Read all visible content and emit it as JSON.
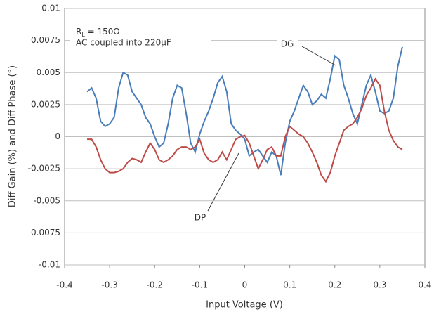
{
  "chart_data": {
    "type": "line",
    "xlabel": "Input Voltage (V)",
    "ylabel": "Diff Gain (%) and Diff Phase (°)",
    "annotations": {
      "load": {
        "main": "R",
        "sub": "L",
        "rest": " = 150Ω"
      },
      "coupling": "AC coupled into 220µF"
    },
    "x": [
      -0.35,
      -0.34,
      -0.33,
      -0.32,
      -0.31,
      -0.3,
      -0.29,
      -0.28,
      -0.27,
      -0.26,
      -0.25,
      -0.24,
      -0.23,
      -0.22,
      -0.21,
      -0.2,
      -0.19,
      -0.18,
      -0.17,
      -0.16,
      -0.15,
      -0.14,
      -0.13,
      -0.12,
      -0.11,
      -0.1,
      -0.09,
      -0.08,
      -0.07,
      -0.06,
      -0.05,
      -0.04,
      -0.03,
      -0.02,
      -0.01,
      0.0,
      0.01,
      0.02,
      0.03,
      0.04,
      0.05,
      0.06,
      0.07,
      0.08,
      0.09,
      0.1,
      0.11,
      0.12,
      0.13,
      0.14,
      0.15,
      0.16,
      0.17,
      0.18,
      0.19,
      0.2,
      0.21,
      0.22,
      0.23,
      0.24,
      0.25,
      0.26,
      0.27,
      0.28,
      0.29,
      0.3,
      0.31,
      0.32,
      0.33,
      0.34,
      0.35
    ],
    "series": [
      {
        "name": "DG",
        "color": "#4a7ebb",
        "values": [
          0.0035,
          0.0038,
          0.003,
          0.0012,
          0.0008,
          0.001,
          0.0015,
          0.0038,
          0.005,
          0.0048,
          0.0035,
          0.003,
          0.0025,
          0.0015,
          0.001,
          0.0,
          -0.0008,
          -0.0005,
          0.001,
          0.003,
          0.004,
          0.0038,
          0.0018,
          -0.0005,
          -0.0012,
          0.0002,
          0.0012,
          0.002,
          0.003,
          0.0042,
          0.0047,
          0.0035,
          0.001,
          0.0005,
          0.0002,
          -0.0002,
          -0.0015,
          -0.0012,
          -0.001,
          -0.0015,
          -0.002,
          -0.0012,
          -0.0015,
          -0.003,
          -0.0005,
          0.0012,
          0.002,
          0.003,
          0.004,
          0.0035,
          0.0025,
          0.0028,
          0.0033,
          0.003,
          0.0045,
          0.0063,
          0.006,
          0.004,
          0.003,
          0.0018,
          0.001,
          0.0025,
          0.004,
          0.0048,
          0.0035,
          0.002,
          0.0018,
          0.002,
          0.003,
          0.0055,
          0.007
        ]
      },
      {
        "name": "DP",
        "color": "#be4b48",
        "values": [
          -0.0002,
          -0.0002,
          -0.0008,
          -0.0018,
          -0.0025,
          -0.0028,
          -0.0028,
          -0.0027,
          -0.0025,
          -0.002,
          -0.0017,
          -0.0018,
          -0.002,
          -0.0012,
          -0.0005,
          -0.001,
          -0.0018,
          -0.002,
          -0.0018,
          -0.0015,
          -0.001,
          -0.0008,
          -0.0008,
          -0.001,
          -0.0008,
          -0.0002,
          -0.0013,
          -0.0018,
          -0.002,
          -0.0018,
          -0.0012,
          -0.0018,
          -0.001,
          -0.0002,
          0.0,
          0.0001,
          -0.0005,
          -0.0015,
          -0.0025,
          -0.0018,
          -0.001,
          -0.0008,
          -0.0015,
          -0.0015,
          0.0,
          0.0008,
          0.0005,
          0.0002,
          0.0,
          -0.0005,
          -0.0012,
          -0.002,
          -0.003,
          -0.0035,
          -0.0028,
          -0.0015,
          -0.0005,
          0.0005,
          0.0008,
          0.001,
          0.0015,
          0.0022,
          0.0032,
          0.0038,
          0.0045,
          0.004,
          0.002,
          0.0005,
          -0.0003,
          -0.0008,
          -0.001
        ]
      }
    ],
    "xlim": [
      -0.4,
      0.4
    ],
    "xticks": [
      -0.4,
      -0.3,
      -0.2,
      -0.1,
      0,
      0.1,
      0.2,
      0.3,
      0.4
    ],
    "ylim": [
      -0.01,
      0.01
    ],
    "yticks": [
      -0.01,
      -0.0075,
      -0.005,
      -0.0025,
      0,
      0.0025,
      0.005,
      0.0075,
      0.01
    ],
    "grid": true
  }
}
